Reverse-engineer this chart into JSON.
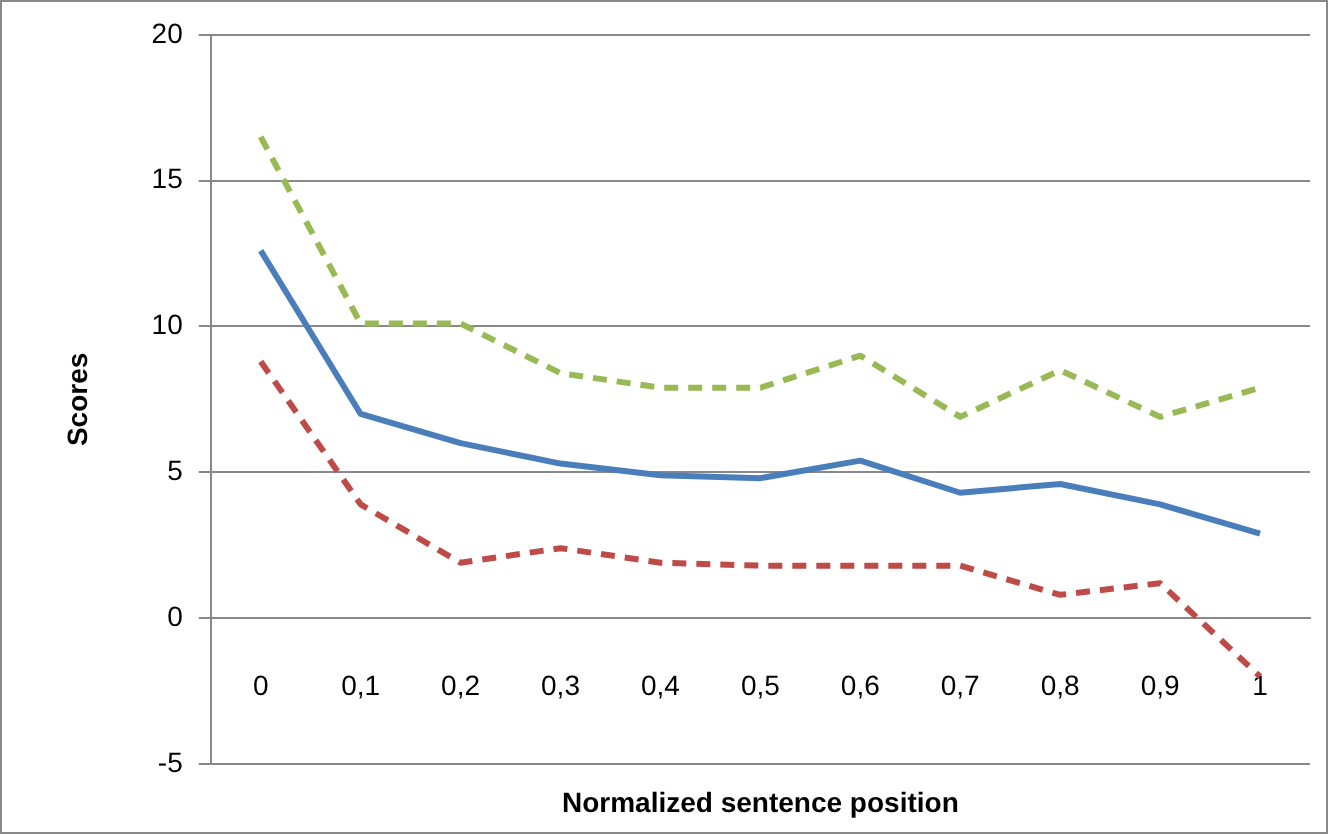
{
  "chart_data": {
    "type": "line",
    "xlabel": "Normalized sentence position",
    "ylabel": "Scores",
    "categories": [
      "0",
      "0,1",
      "0,2",
      "0,3",
      "0,4",
      "0,5",
      "0,6",
      "0,7",
      "0,8",
      "0,9",
      "1"
    ],
    "series": [
      {
        "color": "#98b954",
        "line_style": "dashed",
        "values": [
          16.5,
          10.1,
          10.1,
          8.4,
          7.9,
          7.9,
          9.0,
          6.9,
          8.5,
          6.9,
          7.9
        ]
      },
      {
        "color": "#4a7ebb",
        "line_style": "solid",
        "values": [
          12.6,
          7.0,
          6.0,
          5.3,
          4.9,
          4.8,
          5.4,
          4.3,
          4.6,
          3.9,
          2.9
        ]
      },
      {
        "color": "#be4b48",
        "line_style": "dashed",
        "values": [
          8.8,
          3.9,
          1.9,
          2.4,
          1.9,
          1.8,
          1.8,
          1.8,
          0.8,
          1.2,
          -2.0
        ]
      }
    ],
    "ylim": [
      -5,
      20
    ],
    "yticks": [
      -5,
      0,
      5,
      10,
      15,
      20
    ],
    "grid": "y",
    "legend": false,
    "marker": "none"
  }
}
